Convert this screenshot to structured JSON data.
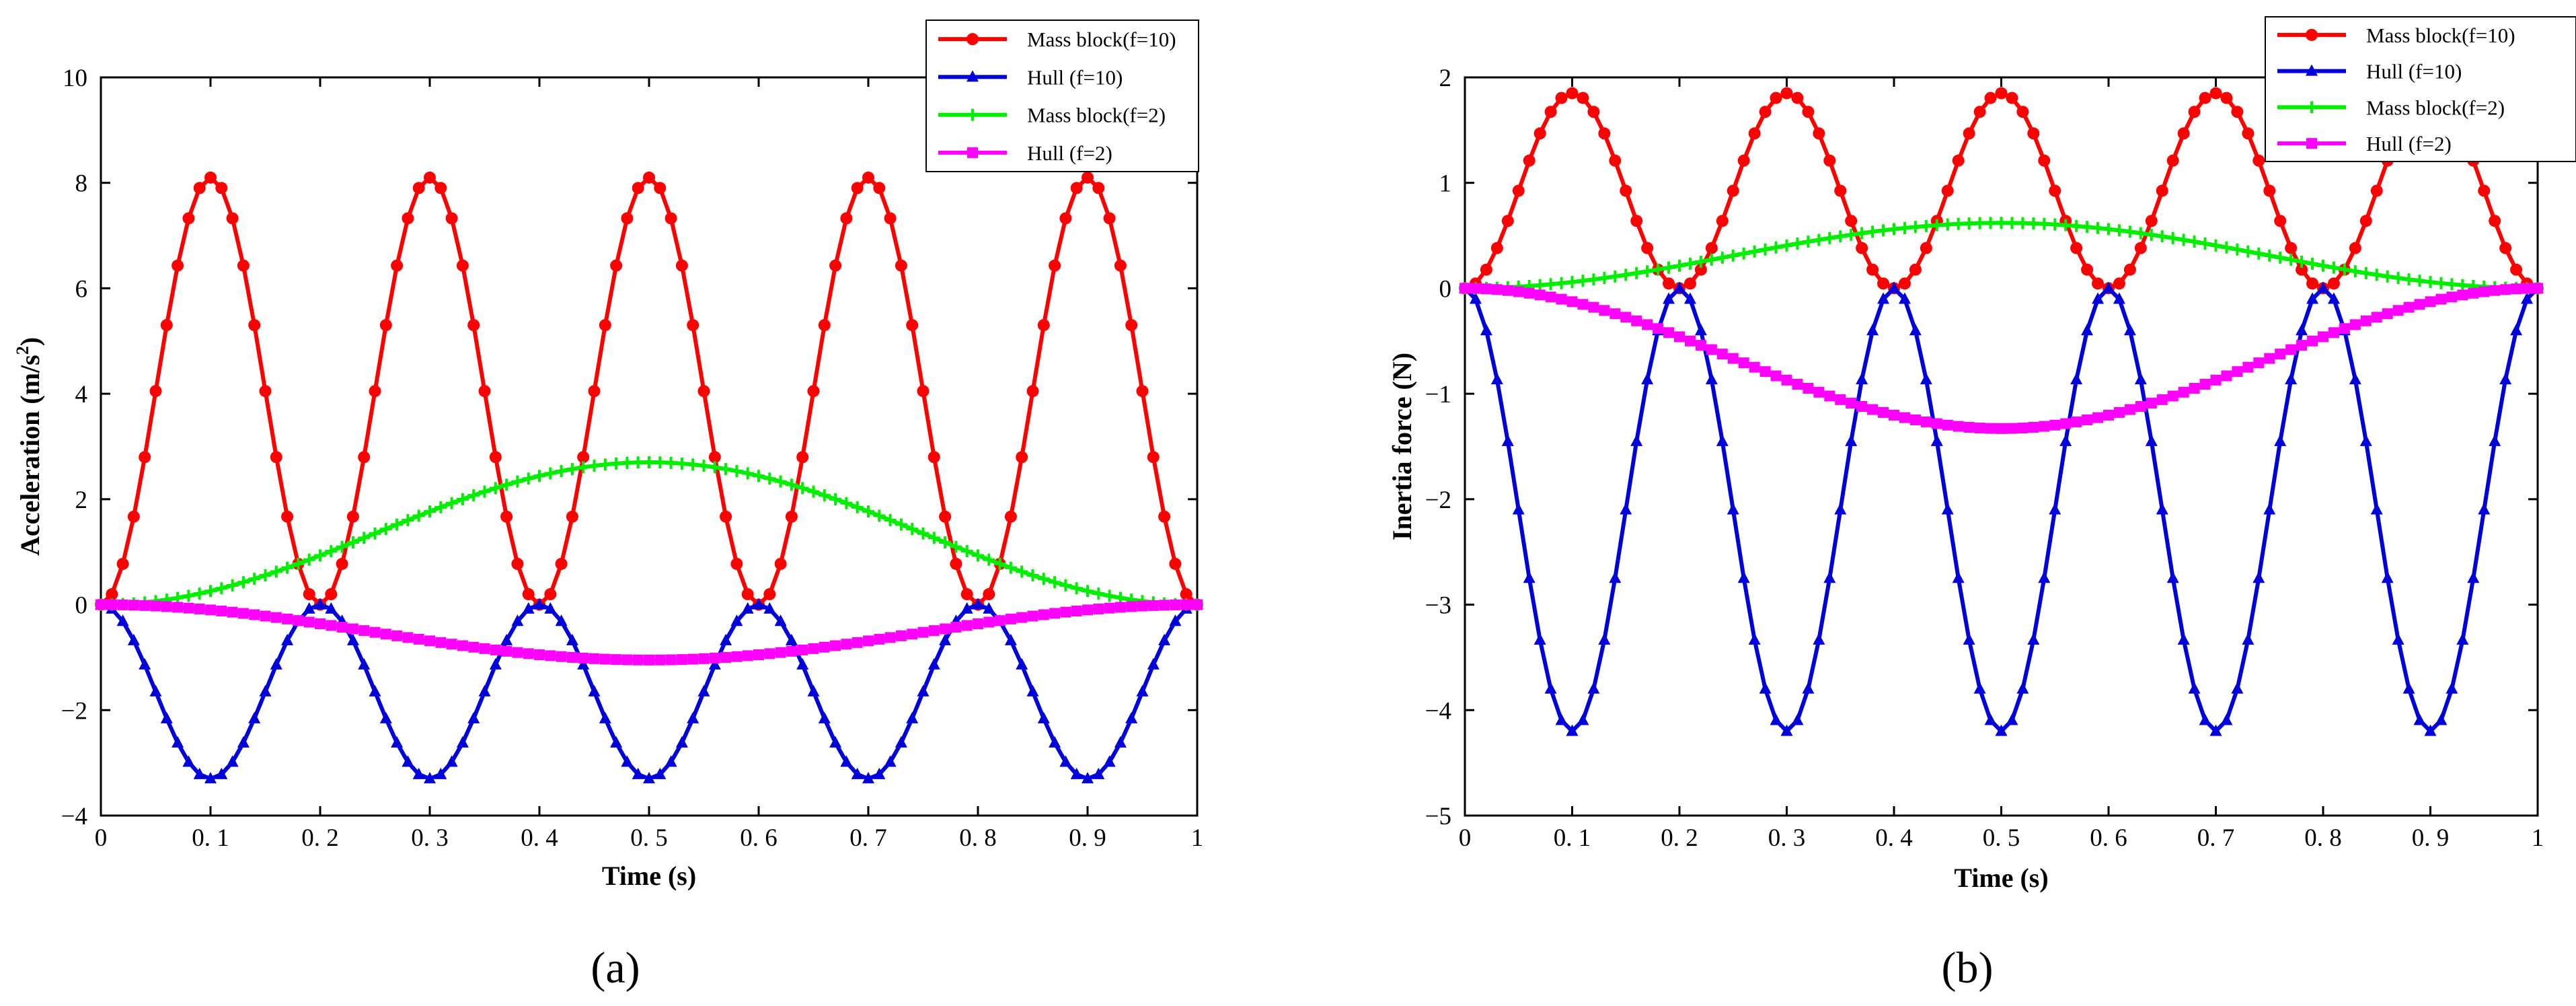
{
  "chart_data": [
    {
      "type": "line",
      "panel_label": "(a)",
      "xlabel": "Time (s)",
      "ylabel": "Acceleration (m/s²)",
      "ylabel_main": "Acceleration (m/s",
      "ylabel_sup": "2",
      "ylabel_tail": ")",
      "xlim": [
        0,
        1
      ],
      "ylim": [
        -4,
        10
      ],
      "x_ticks": [
        0,
        0.1,
        0.2,
        0.3,
        0.4,
        0.5,
        0.6,
        0.7,
        0.8,
        0.9,
        1
      ],
      "x_tick_labels": [
        "0",
        "0. 1",
        "0. 2",
        "0. 3",
        "0. 4",
        "0. 5",
        "0. 6",
        "0. 7",
        "0. 8",
        "0. 9",
        "1"
      ],
      "y_ticks": [
        -4,
        -2,
        0,
        2,
        4,
        6,
        8,
        10
      ],
      "y_tick_labels": [
        "−4",
        "−2",
        "0",
        "2",
        "4",
        "6",
        "8",
        "10"
      ],
      "grid": false,
      "legend_position": "top-right",
      "series": [
        {
          "name": "Mass block(f=10)",
          "color": "#ff0000",
          "marker": "circle",
          "amplitude": 8.1,
          "freq": 10,
          "form": "sin-squared",
          "points": 101
        },
        {
          "name": "Hull (f=10)",
          "color": "#0000dd",
          "marker": "triangle",
          "amplitude": -3.3,
          "freq": 10,
          "form": "sin-squared",
          "points": 101
        },
        {
          "name": "Mass block(f=2)",
          "color": "#00ee00",
          "marker": "plus",
          "amplitude": 2.7,
          "freq": 2,
          "form": "sin-squared",
          "points": 101
        },
        {
          "name": "Hull (f=2)",
          "color": "#ff00ff",
          "marker": "square",
          "amplitude": -1.05,
          "freq": 2,
          "form": "sin-squared",
          "points": 101
        }
      ]
    },
    {
      "type": "line",
      "panel_label": "(b)",
      "xlabel": "Time (s)",
      "ylabel": "Inertia force (N)",
      "ylabel_main": "Inertia force (N)",
      "ylabel_sup": "",
      "ylabel_tail": "",
      "xlim": [
        0,
        1
      ],
      "ylim": [
        -5,
        2
      ],
      "x_ticks": [
        0,
        0.1,
        0.2,
        0.3,
        0.4,
        0.5,
        0.6,
        0.7,
        0.8,
        0.9,
        1
      ],
      "x_tick_labels": [
        "0",
        "0. 1",
        "0. 2",
        "0. 3",
        "0. 4",
        "0. 5",
        "0. 6",
        "0. 7",
        "0. 8",
        "0. 9",
        "1"
      ],
      "y_ticks": [
        -5,
        -4,
        -3,
        -2,
        -1,
        0,
        1,
        2
      ],
      "y_tick_labels": [
        "−5",
        "−4",
        "−3",
        "−2",
        "−1",
        "0",
        "1",
        "2"
      ],
      "grid": false,
      "legend_position": "top-right",
      "series": [
        {
          "name": "Mass block(f=10)",
          "color": "#ff0000",
          "marker": "circle",
          "amplitude": 1.85,
          "freq": 10,
          "form": "sin-squared",
          "points": 101
        },
        {
          "name": "Hull (f=10)",
          "color": "#0000dd",
          "marker": "triangle",
          "amplitude": -4.2,
          "freq": 10,
          "form": "sin-squared",
          "points": 101
        },
        {
          "name": "Mass block(f=2)",
          "color": "#00ee00",
          "marker": "plus",
          "amplitude": 0.62,
          "freq": 2,
          "form": "sin-squared",
          "points": 101
        },
        {
          "name": "Hull (f=2)",
          "color": "#ff00ff",
          "marker": "square",
          "amplitude": -1.33,
          "freq": 2,
          "form": "sin-squared",
          "points": 101
        }
      ]
    }
  ]
}
